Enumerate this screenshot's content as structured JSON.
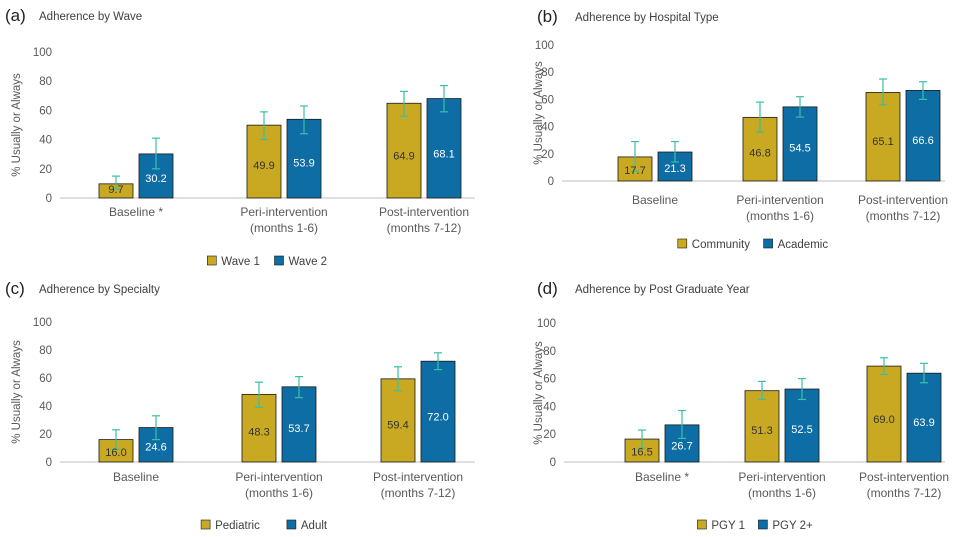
{
  "colors": {
    "s1": "#C9A822",
    "s2": "#0E6DA5",
    "error": "#3BBFA5",
    "axis": "#BFBFBF",
    "s1_label": "#333333",
    "s2_label": "#FFFFFF"
  },
  "chart_data": [
    {
      "type": "bar",
      "panel_label": "(a)",
      "title": "Adherence by Wave",
      "ylabel": "% Usually or Always",
      "xlabel": "",
      "ylim": [
        0,
        100
      ],
      "yticks": [
        0,
        20,
        40,
        60,
        80,
        100
      ],
      "grid": false,
      "legend": "bottom",
      "categories": [
        [
          "Baseline *"
        ],
        [
          "Peri-intervention",
          "(months 1-6)"
        ],
        [
          "Post-intervention",
          "(months 7-12)"
        ]
      ],
      "series": [
        {
          "name": "Wave 1",
          "values": [
            9.7,
            49.9,
            64.9
          ],
          "labels": [
            "9.7",
            "49.9",
            "64.9"
          ],
          "error_low": [
            6,
            40,
            56
          ],
          "error_high": [
            15,
            59,
            73
          ]
        },
        {
          "name": "Wave 2",
          "values": [
            30.2,
            53.9,
            68.1
          ],
          "labels": [
            "30.2",
            "53.9",
            "68.1"
          ],
          "error_low": [
            20,
            44,
            59
          ],
          "error_high": [
            41,
            63,
            77
          ]
        }
      ]
    },
    {
      "type": "bar",
      "panel_label": "(b)",
      "title": "Adherence by Hospital Type",
      "ylabel": "% Usually or Always",
      "xlabel": "",
      "ylim": [
        0,
        100
      ],
      "yticks": [
        0,
        20,
        40,
        60,
        80,
        100
      ],
      "grid": false,
      "legend": "bottom",
      "categories": [
        [
          "Baseline"
        ],
        [
          "Peri-intervention",
          "(months 1-6)"
        ],
        [
          "Post-intervention",
          "(months 7-12)"
        ]
      ],
      "series": [
        {
          "name": "Community",
          "values": [
            17.7,
            46.8,
            65.1
          ],
          "labels": [
            "17.7",
            "46.8",
            "65.1"
          ],
          "error_low": [
            7,
            36,
            56
          ],
          "error_high": [
            29,
            58,
            75
          ]
        },
        {
          "name": "Academic",
          "values": [
            21.3,
            54.5,
            66.6
          ],
          "labels": [
            "21.3",
            "54.5",
            "66.6"
          ],
          "error_low": [
            14,
            47,
            60
          ],
          "error_high": [
            29,
            62,
            73
          ]
        }
      ]
    },
    {
      "type": "bar",
      "panel_label": "(c)",
      "title": "Adherence by Specialty",
      "ylabel": "% Usually or Always",
      "xlabel": "",
      "ylim": [
        0,
        100
      ],
      "yticks": [
        0,
        20,
        40,
        60,
        80,
        100
      ],
      "grid": false,
      "legend": "bottom",
      "categories": [
        [
          "Baseline"
        ],
        [
          "Peri-intervention",
          "(months 1-6)"
        ],
        [
          "Post-intervention",
          "(months 7-12)"
        ]
      ],
      "series": [
        {
          "name": "Pediatric",
          "values": [
            16.0,
            48.3,
            59.4
          ],
          "labels": [
            "16.0",
            "48.3",
            "59.4"
          ],
          "error_low": [
            9,
            39,
            51
          ],
          "error_high": [
            23,
            57,
            68
          ]
        },
        {
          "name": "Adult",
          "values": [
            24.6,
            53.7,
            72.0
          ],
          "labels": [
            "24.6",
            "53.7",
            "72.0"
          ],
          "error_low": [
            16,
            46,
            66
          ],
          "error_high": [
            33,
            61,
            78
          ]
        }
      ]
    },
    {
      "type": "bar",
      "panel_label": "(d)",
      "title": "Adherence by Post Graduate Year",
      "ylabel": "% Usually or Always",
      "xlabel": "",
      "ylim": [
        0,
        100
      ],
      "yticks": [
        0,
        20,
        40,
        60,
        80,
        100
      ],
      "grid": false,
      "legend": "bottom",
      "categories": [
        [
          "Baseline *"
        ],
        [
          "Peri-intervention",
          "(months 1-6)"
        ],
        [
          "Post-intervention",
          "(months 7-12)"
        ]
      ],
      "series": [
        {
          "name": "PGY 1",
          "values": [
            16.5,
            51.3,
            69.0
          ],
          "labels": [
            "16.5",
            "51.3",
            "69.0"
          ],
          "error_low": [
            10,
            45,
            63
          ],
          "error_high": [
            23,
            58,
            75
          ]
        },
        {
          "name": "PGY 2+",
          "values": [
            26.7,
            52.5,
            63.9
          ],
          "labels": [
            "26.7",
            "52.5",
            "63.9"
          ],
          "error_low": [
            17,
            45,
            57
          ],
          "error_high": [
            37,
            60,
            71
          ]
        }
      ]
    }
  ]
}
